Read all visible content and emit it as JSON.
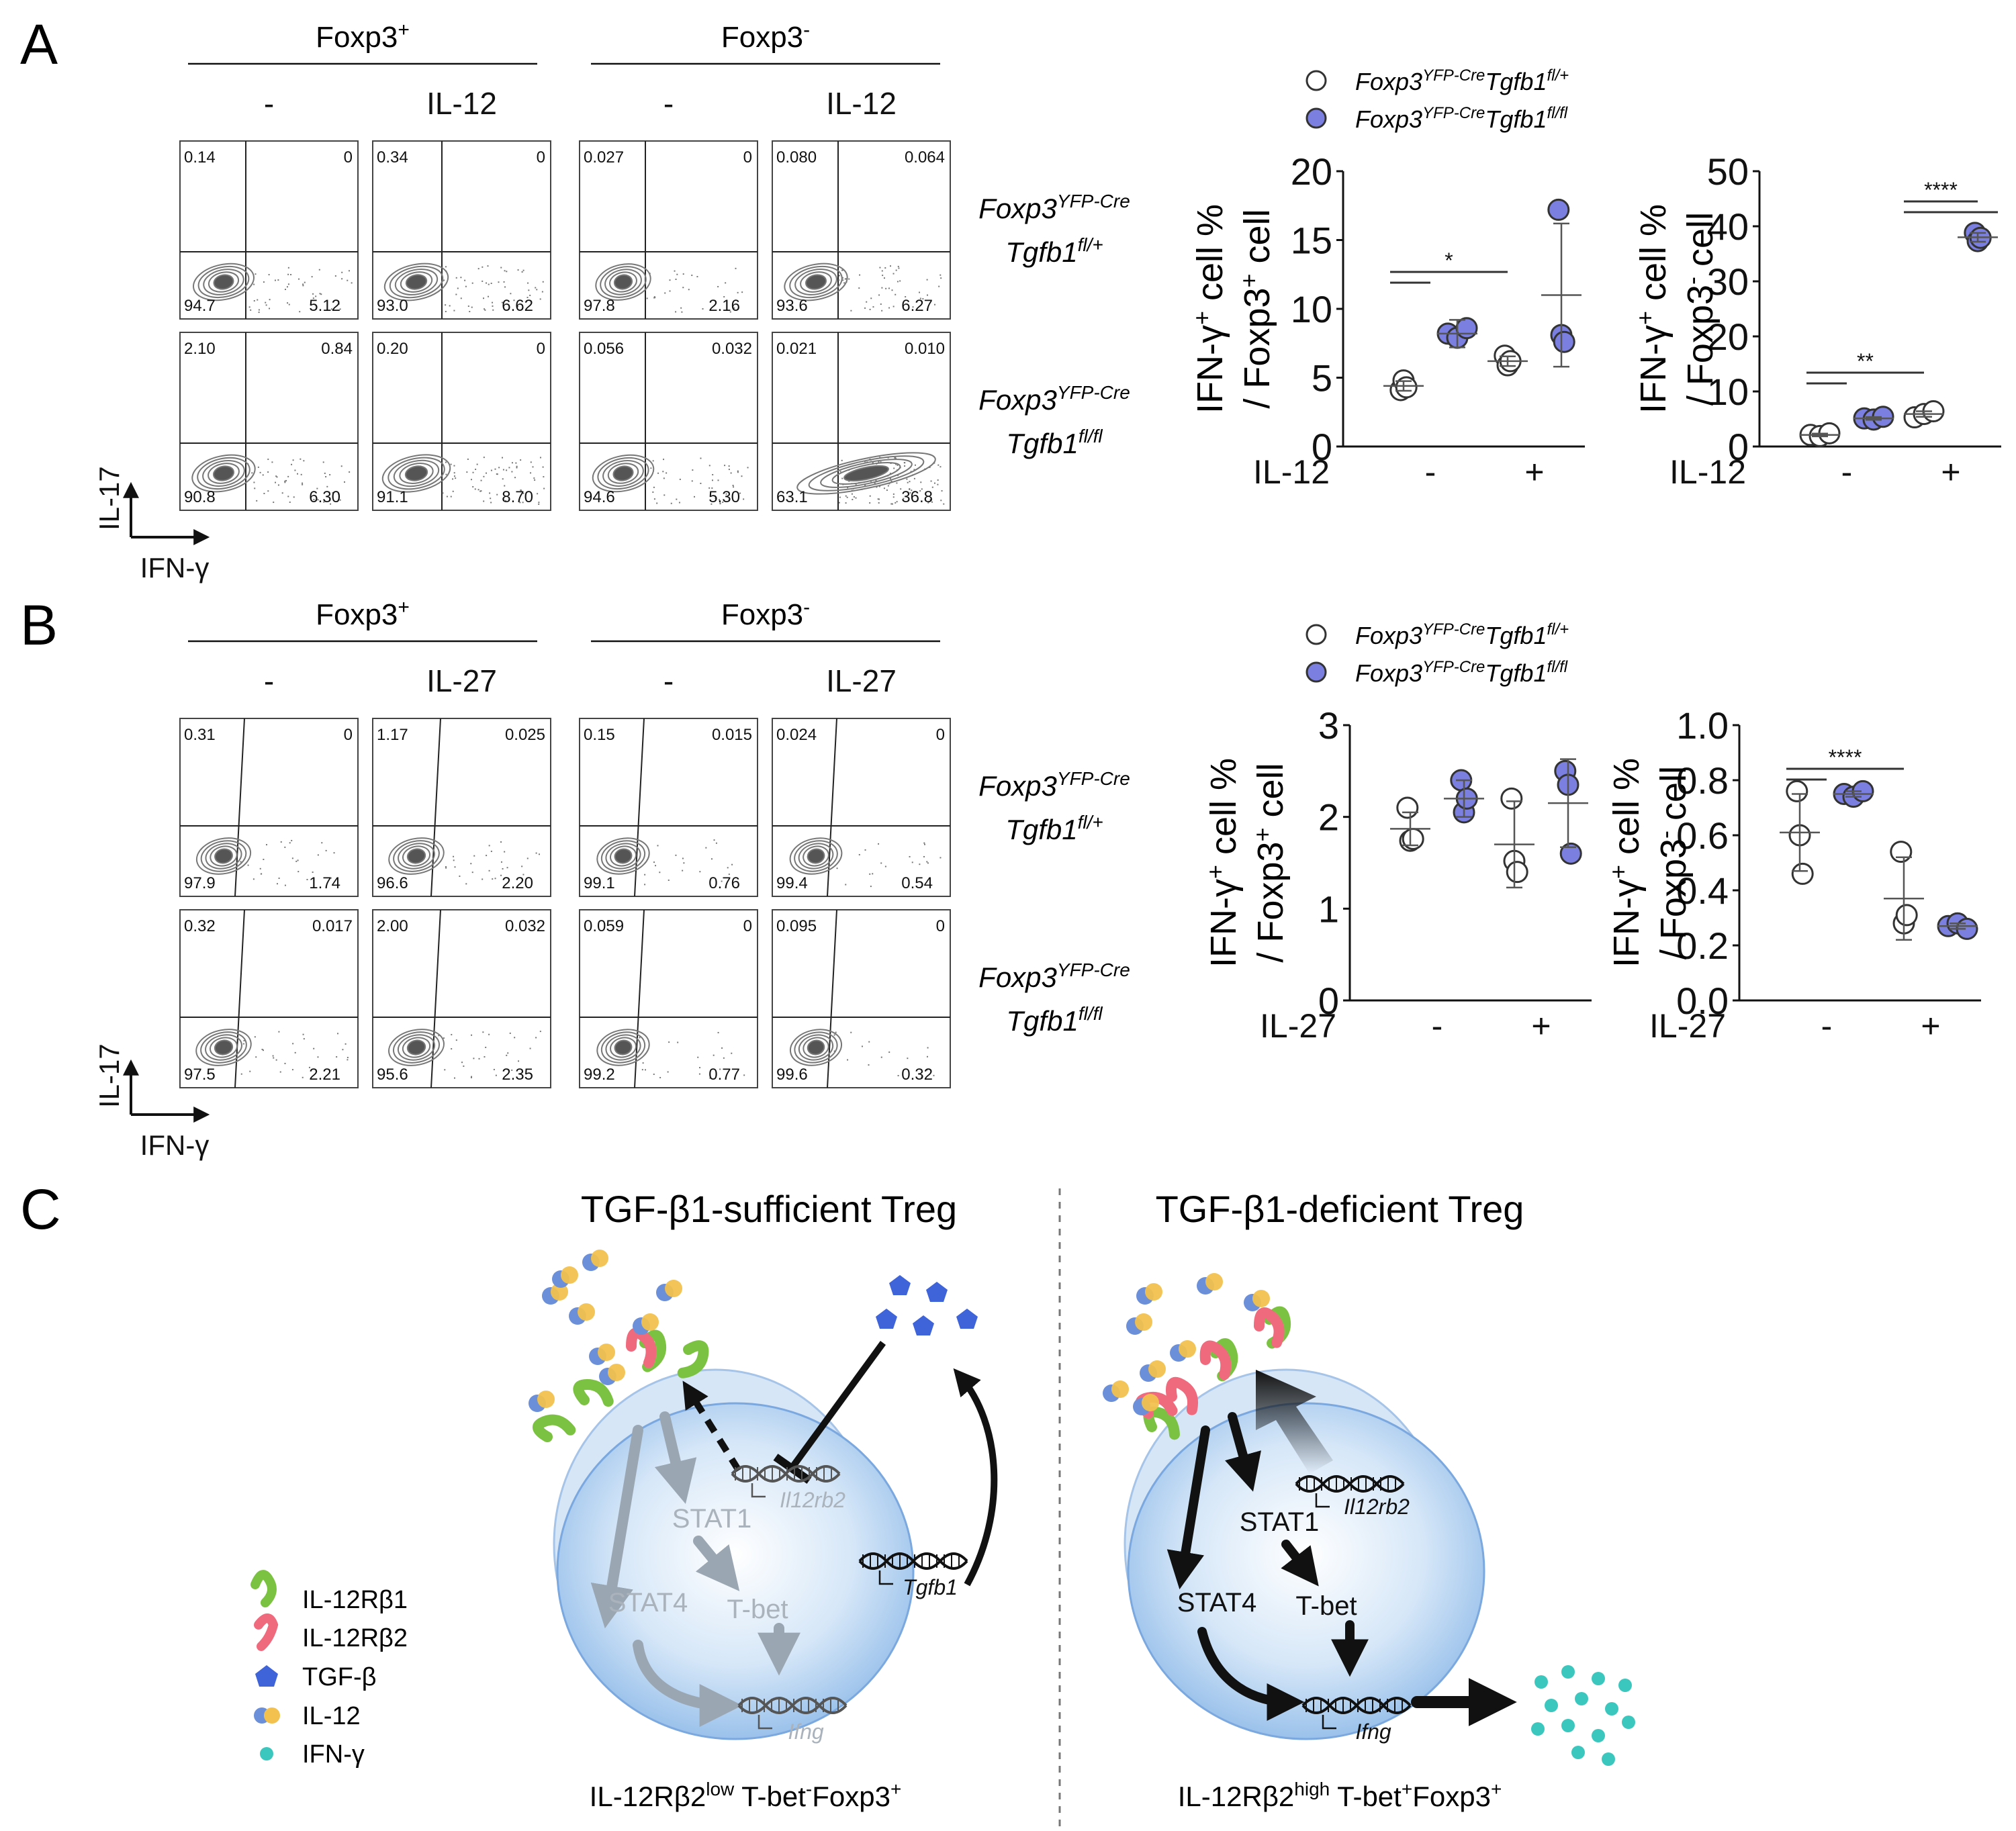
{
  "panel_labels": {
    "a": "A",
    "b": "B",
    "c": "C"
  },
  "flow": {
    "foxp3_pos": "Foxp3",
    "foxp3_neg": "Foxp3",
    "sup_plus": "+",
    "sup_minus": "-",
    "dash": "-",
    "x_axis": "IFN-γ",
    "y_axis": "IL-17",
    "panels": [
      {
        "stim": "IL-12",
        "rows": [
          {
            "geno_top": "Foxp3",
            "geno_top_sup": "YFP-Cre",
            "geno_bot": "Tgfb1",
            "geno_bot_sup": "fl/+",
            "plots": [
              [
                "0.14",
                "0",
                "94.7",
                "5.12"
              ],
              [
                "0.34",
                "0",
                "93.0",
                "6.62"
              ],
              [
                "0.027",
                "0",
                "97.8",
                "2.16"
              ],
              [
                "0.080",
                "0.064",
                "93.6",
                "6.27"
              ]
            ]
          },
          {
            "geno_top": "Foxp3",
            "geno_top_sup": "YFP-Cre",
            "geno_bot": "Tgfb1",
            "geno_bot_sup": "fl/fl",
            "plots": [
              [
                "2.10",
                "0.84",
                "90.8",
                "6.30"
              ],
              [
                "0.20",
                "0",
                "91.1",
                "8.70"
              ],
              [
                "0.056",
                "0.032",
                "94.6",
                "5.30"
              ],
              [
                "0.021",
                "0.010",
                "63.1",
                "36.8"
              ]
            ]
          }
        ]
      },
      {
        "stim": "IL-27",
        "rows": [
          {
            "geno_top": "Foxp3",
            "geno_top_sup": "YFP-Cre",
            "geno_bot": "Tgfb1",
            "geno_bot_sup": "fl/+",
            "plots": [
              [
                "0.31",
                "0",
                "97.9",
                "1.74"
              ],
              [
                "1.17",
                "0.025",
                "96.6",
                "2.20"
              ],
              [
                "0.15",
                "0.015",
                "99.1",
                "0.76"
              ],
              [
                "0.024",
                "0",
                "99.4",
                "0.54"
              ]
            ]
          },
          {
            "geno_top": "Foxp3",
            "geno_top_sup": "YFP-Cre",
            "geno_bot": "Tgfb1",
            "geno_bot_sup": "fl/fl",
            "plots": [
              [
                "0.32",
                "0.017",
                "97.5",
                "2.21"
              ],
              [
                "2.00",
                "0.032",
                "95.6",
                "2.35"
              ],
              [
                "0.059",
                "0",
                "99.2",
                "0.77"
              ],
              [
                "0.095",
                "0",
                "99.6",
                "0.32"
              ]
            ]
          }
        ]
      }
    ]
  },
  "legend": {
    "open": {
      "main": "Foxp3",
      "sup1": "YFP-Cre",
      "mid": "Tgfb1",
      "sup2": "fl/+"
    },
    "filled": {
      "main": "Foxp3",
      "sup1": "YFP-Cre",
      "mid": "Tgfb1",
      "sup2": "fl/fl"
    }
  },
  "colors": {
    "open_fill": "#ffffff",
    "filled_fill": "#7b7fe0",
    "stroke": "#333333"
  },
  "chart_data": [
    {
      "type": "scatter",
      "panel": "A",
      "ylabel_line1": "IFN-γ",
      "ylabel_sup1": "+",
      "ylabel_rest1": " cell %",
      "ylabel_line2": "/ Foxp3",
      "ylabel_sup2": "+",
      "ylabel_rest2": " cell",
      "ylim": [
        0,
        20
      ],
      "yticks": [
        "0",
        "5",
        "10",
        "15",
        "20"
      ],
      "xlabel": "IL-12",
      "categories": [
        "-",
        "+"
      ],
      "series": [
        {
          "name": "fl/+",
          "values": [
            [
              4.1,
              4.8,
              4.3
            ],
            [
              6.6,
              5.9,
              6.2
            ]
          ],
          "mean": [
            4.4,
            6.2
          ],
          "err": [
            0.35,
            0.35
          ]
        },
        {
          "name": "fl/fl",
          "values": [
            [
              8.2,
              7.9,
              8.6
            ],
            [
              17.2,
              8.1,
              7.6
            ]
          ],
          "mean": [
            8.2,
            11.0
          ],
          "err": [
            1.0,
            5.2
          ]
        }
      ],
      "sig": [
        {
          "label": "*",
          "from": 0,
          "to": 1
        }
      ]
    },
    {
      "type": "scatter",
      "panel": "A",
      "ylabel_line1": "IFN-γ",
      "ylabel_sup1": "+",
      "ylabel_rest1": " cell %",
      "ylabel_line2": "/ Foxp3",
      "ylabel_sup2": "-",
      "ylabel_rest2": " cell",
      "ylim": [
        0,
        50
      ],
      "yticks": [
        "0",
        "10",
        "20",
        "30",
        "40",
        "50"
      ],
      "xlabel": "IL-12",
      "categories": [
        "-",
        "+"
      ],
      "series": [
        {
          "name": "fl/+",
          "values": [
            [
              2.1,
              1.9,
              2.4
            ],
            [
              5.3,
              5.9,
              6.4
            ]
          ],
          "mean": [
            2.1,
            5.9
          ],
          "err": [
            0.25,
            0.5
          ]
        },
        {
          "name": "fl/fl",
          "values": [
            [
              5.1,
              4.9,
              5.4
            ],
            [
              38.8,
              37.3,
              37.9
            ]
          ],
          "mean": [
            5.1,
            38.0
          ],
          "err": [
            0.25,
            0.8
          ]
        }
      ],
      "sig": [
        {
          "label": "**",
          "from": 0,
          "to": 1
        },
        {
          "label": "****",
          "from": 1,
          "to": 1
        }
      ]
    },
    {
      "type": "scatter",
      "panel": "B",
      "ylabel_line1": "IFN-γ",
      "ylabel_sup1": "+",
      "ylabel_rest1": " cell %",
      "ylabel_line2": "/ Foxp3",
      "ylabel_sup2": "+",
      "ylabel_rest2": " cell",
      "ylim": [
        0,
        3
      ],
      "yticks": [
        "0",
        "1",
        "2",
        "3"
      ],
      "xlabel": "IL-27",
      "categories": [
        "-",
        "+"
      ],
      "series": [
        {
          "name": "fl/+",
          "values": [
            [
              2.1,
              1.74,
              1.76
            ],
            [
              2.2,
              1.52,
              1.4
            ]
          ],
          "mean": [
            1.87,
            1.7
          ],
          "err": [
            0.18,
            0.47
          ]
        },
        {
          "name": "fl/fl",
          "values": [
            [
              2.4,
              2.05,
              2.2
            ],
            [
              2.5,
              2.35,
              1.6
            ]
          ],
          "mean": [
            2.2,
            2.15
          ],
          "err": [
            0.2,
            0.48
          ]
        }
      ],
      "sig": []
    },
    {
      "type": "scatter",
      "panel": "B",
      "ylabel_line1": "IFN-γ",
      "ylabel_sup1": "+",
      "ylabel_rest1": " cell %",
      "ylabel_line2": "/ Foxp3",
      "ylabel_sup2": "-",
      "ylabel_rest2": " cell",
      "ylim": [
        0,
        1.0
      ],
      "yticks": [
        "0.0",
        "0.2",
        "0.4",
        "0.6",
        "0.8",
        "1.0"
      ],
      "xlabel": "IL-27",
      "categories": [
        "-",
        "+"
      ],
      "series": [
        {
          "name": "fl/+",
          "values": [
            [
              0.76,
              0.6,
              0.46
            ],
            [
              0.54,
              0.28,
              0.31
            ]
          ],
          "mean": [
            0.61,
            0.37
          ],
          "err": [
            0.14,
            0.15
          ]
        },
        {
          "name": "fl/fl",
          "values": [
            [
              0.75,
              0.74,
              0.76
            ],
            [
              0.27,
              0.28,
              0.26
            ]
          ],
          "mean": [
            0.75,
            0.27
          ],
          "err": [
            0.01,
            0.01
          ]
        }
      ],
      "sig": [
        {
          "label": "****",
          "from": 0,
          "to": 1
        }
      ]
    }
  ],
  "schematic": {
    "left_title": "TGF-β1-sufficient Treg",
    "right_title": "TGF-β1-deficient Treg",
    "stat1": "STAT1",
    "stat4": "STAT4",
    "tbet": "T-bet",
    "gene_il12rb2": "Il12rb2",
    "gene_ifng": "Ifng",
    "gene_tgfb1": "Tgfb1",
    "left_caption": {
      "a": "IL-12Rβ2",
      "sup1": "low",
      "b": " T-bet",
      "sup2": "-",
      "c": "Foxp3",
      "sup3": "+"
    },
    "right_caption": {
      "a": "IL-12Rβ2",
      "sup1": "high",
      "b": " T-bet",
      "sup2": "+",
      "c": "Foxp3",
      "sup3": "+"
    },
    "legend": [
      {
        "label": "IL-12Rβ1",
        "icon": "green-receptor"
      },
      {
        "label": "IL-12Rβ2",
        "icon": "pink-receptor"
      },
      {
        "label": "TGF-β",
        "icon": "blue-pentagon"
      },
      {
        "label": "IL-12",
        "icon": "yellow-blue-dimer"
      },
      {
        "label": "IFN-γ",
        "icon": "teal-dot"
      }
    ],
    "colors": {
      "cell": "#9cc4ec",
      "green": "#7cc242",
      "pink": "#f06a7e",
      "blue": "#3f63d8",
      "yellow": "#f2c14e",
      "teal": "#3cc7be"
    }
  }
}
